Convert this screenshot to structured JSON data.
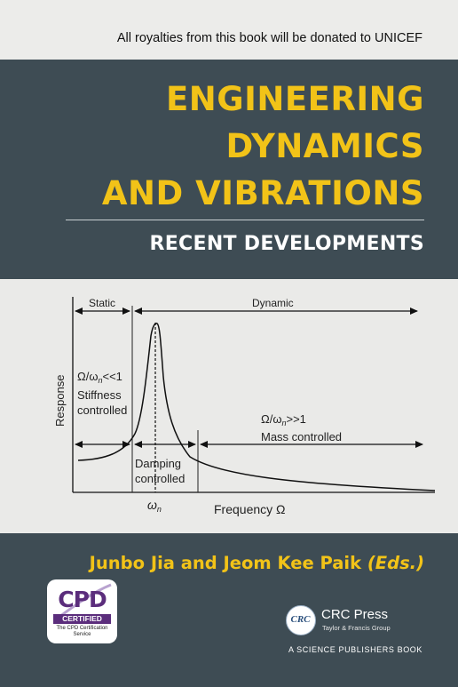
{
  "cover": {
    "donation_note": "All royalties from this book will be donated to UNICEF",
    "title_lines": [
      "ENGINEERING",
      "DYNAMICS",
      "AND VIBRATIONS"
    ],
    "subtitle": "RECENT DEVELOPMENTS",
    "authors": "Junbo Jia and Jeom Kee Paik",
    "editors_tag": "(Eds.)",
    "colors": {
      "band": "#3e4c54",
      "title": "#f2c318",
      "background": "#eaeae8"
    }
  },
  "diagram": {
    "region_static": "Static",
    "region_dynamic": "Dynamic",
    "static_ratio": "Ω/ω",
    "static_ratio_sub": "n",
    "static_ratio_rel": "<<1",
    "stiffness_line1": "Stiffness",
    "stiffness_line2": "controlled",
    "mass_ratio": "Ω/ω",
    "mass_ratio_sub": "n",
    "mass_ratio_rel": ">>1",
    "mass_label": "Mass controlled",
    "damping_line1": "Damping",
    "damping_line2": "controlled",
    "y_axis_label": "Response",
    "x_axis_label": "Frequency Ω",
    "omega_n": "ω",
    "omega_n_sub": "n"
  },
  "logos": {
    "cpd_letters": "CPD",
    "cpd_certified": "CERTIFIED",
    "cpd_service_line1": "The CPD Certification",
    "cpd_service_line2": "Service",
    "crc_mark": "CRC",
    "crc_name": "CRC Press",
    "crc_group": "Taylor & Francis Group",
    "publisher_note": "A SCIENCE PUBLISHERS BOOK"
  }
}
